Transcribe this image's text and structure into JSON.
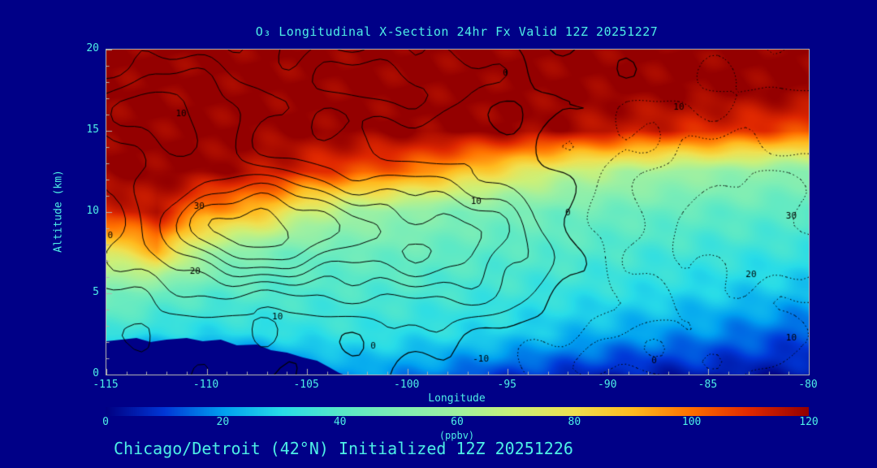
{
  "title": "O₃ Longitudinal X-Section 24hr  Fx Valid 12Z 20251227",
  "caption": "Chicago/Detroit (42°N) Initialized 12Z 20251226",
  "colors": {
    "background": "#000087",
    "text": "#4DEFE6",
    "axis": "#b0b0b0",
    "contour_line": "#000000"
  },
  "chart_data": {
    "type": "heatmap",
    "title": "O₃ Longitudinal X-Section 24hr  Fx Valid 12Z 20251227",
    "xlabel": "Longitude",
    "ylabel": "Altitude (km)",
    "xlim": [
      -115,
      -80
    ],
    "ylim": [
      0,
      20
    ],
    "x_ticks": [
      -115,
      -110,
      -105,
      -100,
      -95,
      -90,
      -85,
      -80
    ],
    "y_ticks": [
      0,
      5,
      10,
      15,
      20
    ],
    "colorbar": {
      "label": "(ppbv)",
      "min": 0,
      "max": 120,
      "ticks": [
        0,
        20,
        40,
        60,
        80,
        100,
        120
      ]
    },
    "colormap": [
      [
        0,
        "#000082"
      ],
      [
        10,
        "#0038d8"
      ],
      [
        20,
        "#00a0f0"
      ],
      [
        30,
        "#28dce8"
      ],
      [
        40,
        "#58e8c8"
      ],
      [
        50,
        "#80eeb4"
      ],
      [
        60,
        "#a0f0a0"
      ],
      [
        70,
        "#ccf078"
      ],
      [
        80,
        "#f0e050"
      ],
      [
        90,
        "#ffbc20"
      ],
      [
        100,
        "#ff7000"
      ],
      [
        110,
        "#e02800"
      ],
      [
        120,
        "#940000"
      ]
    ],
    "grid": {
      "lons": [
        -115,
        -112.5,
        -110,
        -107.5,
        -105,
        -102.5,
        -100,
        -97.5,
        -95,
        -92.5,
        -90,
        -87.5,
        -85,
        -82.5,
        -80
      ],
      "alts": [
        0,
        2.5,
        5,
        7.5,
        10,
        12.5,
        15,
        17.5,
        20
      ],
      "ppbv": [
        [
          0,
          0,
          0,
          5,
          15,
          20,
          18,
          14,
          10,
          8,
          6,
          5,
          5,
          4,
          4
        ],
        [
          35,
          30,
          30,
          30,
          32,
          33,
          31,
          30,
          28,
          25,
          22,
          20,
          18,
          15,
          12
        ],
        [
          50,
          45,
          40,
          40,
          38,
          38,
          38,
          36,
          35,
          33,
          32,
          30,
          28,
          26,
          25
        ],
        [
          75,
          90,
          60,
          50,
          45,
          45,
          45,
          42,
          40,
          40,
          38,
          36,
          35,
          34,
          33
        ],
        [
          110,
          115,
          95,
          90,
          70,
          60,
          55,
          50,
          48,
          46,
          45,
          44,
          42,
          42,
          41
        ],
        [
          120,
          120,
          120,
          115,
          110,
          105,
          100,
          90,
          80,
          70,
          65,
          60,
          58,
          55,
          52
        ],
        [
          120,
          120,
          120,
          120,
          120,
          120,
          120,
          120,
          120,
          118,
          115,
          112,
          110,
          108,
          105
        ],
        [
          120,
          120,
          120,
          120,
          120,
          120,
          120,
          120,
          120,
          120,
          120,
          120,
          120,
          120,
          120
        ],
        [
          120,
          120,
          120,
          120,
          120,
          120,
          120,
          120,
          120,
          120,
          120,
          120,
          120,
          120,
          120
        ]
      ]
    },
    "terrain": [
      [
        -115,
        2.05
      ],
      [
        -113.5,
        2.25
      ],
      [
        -112.8,
        2.0
      ],
      [
        -112,
        2.15
      ],
      [
        -111,
        2.25
      ],
      [
        -110.2,
        2.05
      ],
      [
        -109.3,
        2.15
      ],
      [
        -108.5,
        1.8
      ],
      [
        -107.5,
        1.85
      ],
      [
        -106.8,
        1.5
      ],
      [
        -106,
        1.35
      ],
      [
        -105.2,
        1.05
      ],
      [
        -104.5,
        0.85
      ],
      [
        -103.9,
        0.45
      ],
      [
        -103.4,
        0.1
      ],
      [
        -103.2,
        0
      ]
    ],
    "contours": {
      "levels": [
        -15,
        -10,
        -5,
        0,
        5,
        10,
        15,
        20,
        25,
        30,
        35
      ],
      "blobs": [
        {
          "a": 36,
          "x": -107.5,
          "y": 9,
          "sx": 5.5,
          "sy": 3.4
        },
        {
          "a": 22,
          "x": -98,
          "y": 8,
          "sx": 5,
          "sy": 4
        },
        {
          "a": 20,
          "x": -112,
          "y": 16,
          "sx": 4.5,
          "sy": 3.5
        },
        {
          "a": 12,
          "x": -101,
          "y": 18,
          "sx": 5,
          "sy": 2.2
        },
        {
          "a": -17,
          "x": -83.5,
          "y": 9,
          "sx": 6.5,
          "sy": 6
        },
        {
          "a": -10,
          "x": -88,
          "y": 1,
          "sx": 8,
          "sy": 2
        }
      ],
      "labels": [
        {
          "text": "0",
          "lon": -114.7,
          "alt": 8.6
        },
        {
          "text": "10",
          "lon": -111.3,
          "alt": 16.1
        },
        {
          "text": "30",
          "lon": -110.4,
          "alt": 10.4
        },
        {
          "text": "20",
          "lon": -110.6,
          "alt": 6.4
        },
        {
          "text": "10",
          "lon": -106.5,
          "alt": 3.6
        },
        {
          "text": "0",
          "lon": -101.6,
          "alt": 1.8
        },
        {
          "text": "0",
          "lon": -95.0,
          "alt": 18.6
        },
        {
          "text": "10",
          "lon": -96.6,
          "alt": 10.7
        },
        {
          "text": "0",
          "lon": -91.9,
          "alt": 10.0
        },
        {
          "text": "-10",
          "lon": -96.5,
          "alt": 1.0
        },
        {
          "text": "10",
          "lon": -86.5,
          "alt": 16.5
        },
        {
          "text": "30",
          "lon": -80.9,
          "alt": 9.8
        },
        {
          "text": "20",
          "lon": -82.9,
          "alt": 6.2
        },
        {
          "text": "10",
          "lon": -80.9,
          "alt": 2.3
        },
        {
          "text": "0",
          "lon": -87.6,
          "alt": 0.9
        }
      ]
    }
  }
}
